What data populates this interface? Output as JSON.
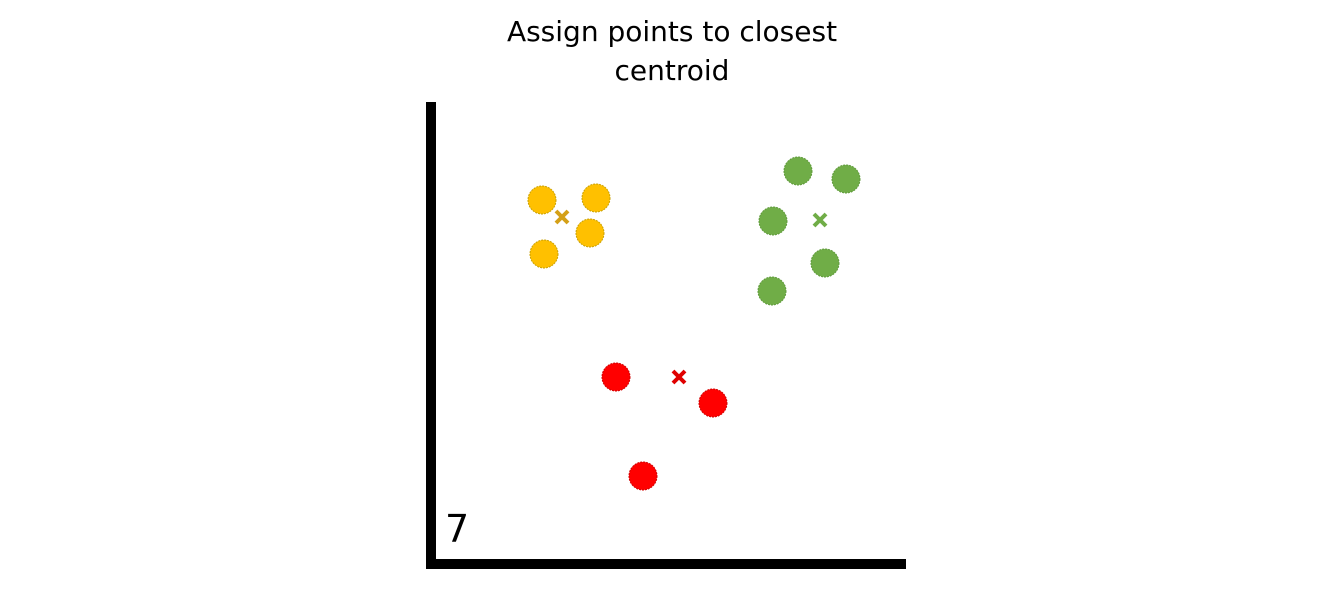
{
  "title_lines": [
    "Assign points to closest",
    "centroid"
  ],
  "step_label": "7",
  "colors": {
    "axis": "#000000",
    "yellow": "#FFC000",
    "yellow_edge": "#C9A000",
    "yellow_marker": "#D4A017",
    "green": "#70AD47",
    "green_edge": "#5E9A3A",
    "green_marker": "#70AD47",
    "red": "#FF0000",
    "red_edge": "#D00000",
    "red_marker": "#E00000"
  },
  "clusters": [
    {
      "name": "yellow",
      "centroid": [
        562,
        217
      ],
      "points": [
        [
          542,
          200
        ],
        [
          596,
          198
        ],
        [
          590,
          233
        ],
        [
          544,
          254
        ]
      ]
    },
    {
      "name": "green",
      "centroid": [
        820,
        220
      ],
      "points": [
        [
          798,
          171
        ],
        [
          846,
          179
        ],
        [
          773,
          221
        ],
        [
          825,
          263
        ],
        [
          772,
          291
        ]
      ]
    },
    {
      "name": "red",
      "centroid": [
        679,
        377
      ],
      "points": [
        [
          616,
          377
        ],
        [
          713,
          403
        ],
        [
          643,
          476
        ]
      ]
    }
  ]
}
